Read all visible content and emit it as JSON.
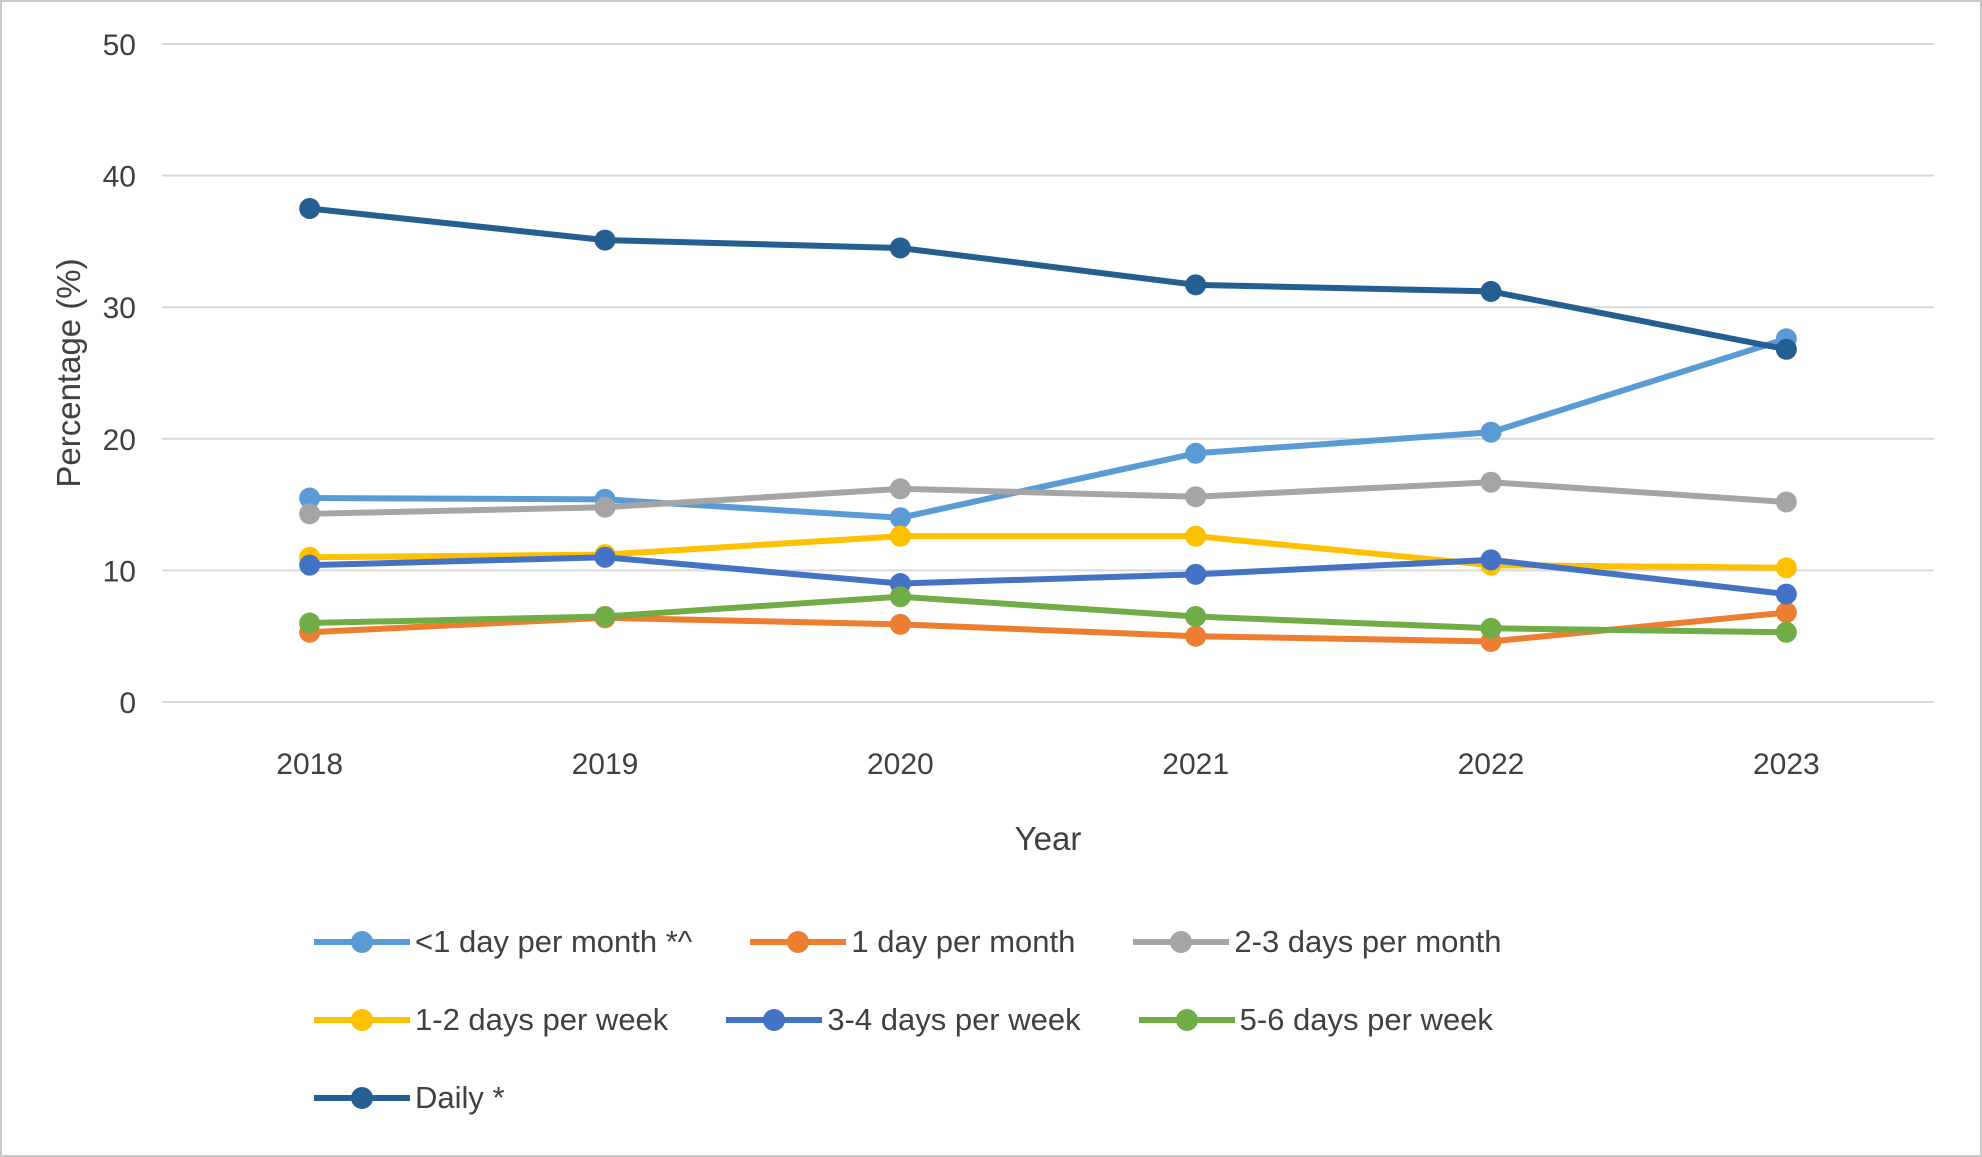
{
  "chart_data": {
    "type": "line",
    "x": [
      "2018",
      "2019",
      "2020",
      "2021",
      "2022",
      "2023"
    ],
    "series": [
      {
        "name": "<1 day per month *^",
        "color": "#5B9BD5",
        "values": [
          15.5,
          15.4,
          14.0,
          18.9,
          20.5,
          27.6
        ]
      },
      {
        "name": "1 day per month",
        "color": "#ED7D31",
        "values": [
          5.3,
          6.4,
          5.9,
          5.0,
          4.6,
          6.8
        ]
      },
      {
        "name": "2-3 days per month",
        "color": "#A5A5A5",
        "values": [
          14.3,
          14.8,
          16.2,
          15.6,
          16.7,
          15.2
        ]
      },
      {
        "name": "1-2 days per week",
        "color": "#FFC000",
        "values": [
          11.0,
          11.2,
          12.6,
          12.6,
          10.4,
          10.2
        ]
      },
      {
        "name": "3-4 days per week",
        "color": "#4472C4",
        "values": [
          10.4,
          11.0,
          9.0,
          9.7,
          10.8,
          8.2
        ]
      },
      {
        "name": "5-6 days per week",
        "color": "#70AD47",
        "values": [
          6.0,
          6.5,
          8.0,
          6.5,
          5.6,
          5.3
        ]
      },
      {
        "name": "Daily *",
        "color": "#255E91",
        "values": [
          37.5,
          35.1,
          34.5,
          31.7,
          31.2,
          26.8
        ]
      }
    ],
    "title": "",
    "xlabel": "Year",
    "ylabel": "Percentage (%)",
    "ylim": [
      0,
      50
    ],
    "yticks": [
      0,
      10,
      20,
      30,
      40,
      50
    ],
    "grid": true,
    "gridline_color": "#d9d9d9",
    "legend_position": "bottom",
    "legend_columns": 3
  }
}
